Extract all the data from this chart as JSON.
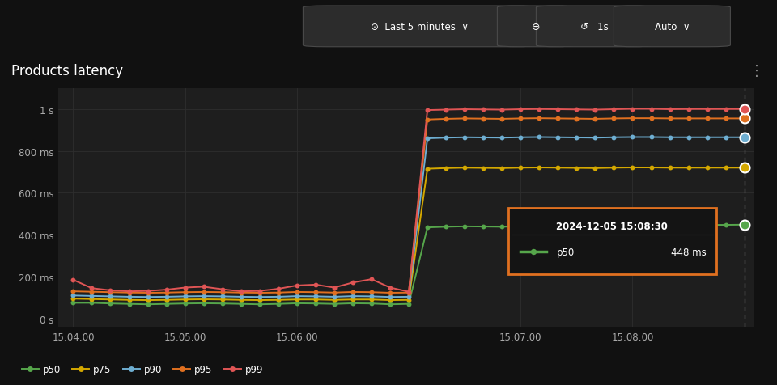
{
  "bg_color": "#111111",
  "panel_color": "#1e1e1e",
  "title": "Products latency",
  "title_color": "#ffffff",
  "title_fontsize": 12,
  "grid_color": "#2e2e2e",
  "tick_color": "#aaaaaa",
  "series": {
    "p50": {
      "color": "#56a64b",
      "before": [
        75,
        75,
        72,
        70,
        68,
        70,
        72,
        73,
        72,
        70,
        68,
        70,
        73,
        72,
        70,
        73,
        72,
        68,
        70
      ],
      "after": [
        430,
        435,
        438,
        440,
        439,
        438,
        440,
        442,
        441,
        440,
        439,
        441,
        443,
        444,
        445,
        446,
        447,
        447,
        448
      ]
    },
    "p75": {
      "color": "#d4a800",
      "before": [
        95,
        93,
        91,
        89,
        88,
        89,
        91,
        92,
        91,
        89,
        88,
        89,
        91,
        91,
        89,
        91,
        91,
        88,
        89
      ],
      "after": [
        710,
        715,
        718,
        720,
        719,
        718,
        720,
        721,
        720,
        719,
        718,
        720,
        721,
        721,
        720,
        720,
        720,
        720,
        720
      ]
    },
    "p90": {
      "color": "#6eaed1",
      "before": [
        110,
        108,
        106,
        104,
        103,
        104,
        106,
        107,
        106,
        104,
        103,
        104,
        107,
        106,
        104,
        107,
        106,
        103,
        104
      ],
      "after": [
        855,
        860,
        863,
        865,
        864,
        863,
        865,
        866,
        865,
        864,
        863,
        865,
        866,
        866,
        865,
        865,
        865,
        865,
        865
      ]
    },
    "p95": {
      "color": "#e07020",
      "before": [
        130,
        128,
        126,
        124,
        123,
        124,
        126,
        127,
        126,
        124,
        123,
        124,
        127,
        126,
        124,
        127,
        126,
        123,
        124
      ],
      "after": [
        945,
        950,
        953,
        955,
        954,
        953,
        955,
        956,
        955,
        954,
        953,
        955,
        956,
        956,
        955,
        955,
        955,
        955,
        955
      ]
    },
    "p99": {
      "color": "#e05555",
      "before": [
        185,
        145,
        135,
        130,
        132,
        138,
        148,
        152,
        140,
        130,
        132,
        142,
        158,
        162,
        148,
        172,
        188,
        148,
        128
      ],
      "after": [
        990,
        995,
        997,
        999,
        998,
        997,
        999,
        1000,
        999,
        998,
        997,
        999,
        1001,
        1001,
        999,
        1000,
        1000,
        1000,
        1000
      ]
    }
  },
  "n_before": 19,
  "n_after": 19,
  "jump_at": 18,
  "x_labels": [
    "15:04:00",
    "15:05:00",
    "15:06:00",
    "15:07:00",
    "15:08:00"
  ],
  "x_label_data_pos": [
    0,
    6,
    12,
    24,
    30
  ],
  "yticks": [
    0,
    200,
    400,
    600,
    800,
    1000
  ],
  "ytick_labels": [
    "0 s",
    "200 ms",
    "400 ms",
    "600 ms",
    "800 ms",
    "1 s"
  ],
  "ylim": [
    -40,
    1100
  ],
  "tooltip_date": "2024-12-05 15:08:30",
  "tooltip_series": "p50",
  "tooltip_value": "448 ms",
  "tooltip_color": "#56a64b",
  "tooltip_bg": "#141414",
  "tooltip_border": "#e07020",
  "vline_color": "#666666",
  "series_order": [
    "p50",
    "p75",
    "p90",
    "p95",
    "p99"
  ]
}
